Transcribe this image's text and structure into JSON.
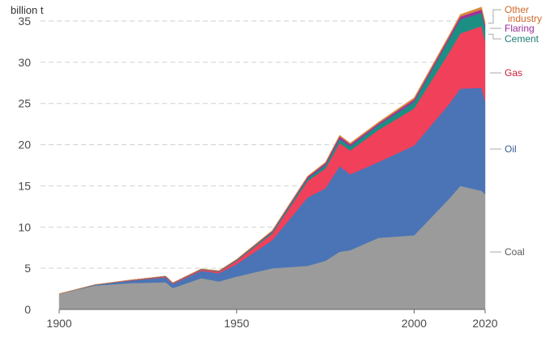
{
  "chart_data": {
    "type": "area",
    "stacked": true,
    "title": "",
    "xlabel": "",
    "ylabel": "billion t",
    "xlim": [
      1900,
      2020
    ],
    "ylim": [
      0,
      35
    ],
    "yticks": [
      0,
      5,
      10,
      15,
      20,
      25,
      30,
      35
    ],
    "xticks": [
      1900,
      1950,
      2000,
      2020
    ],
    "grid": "horizontal dashed",
    "legend_placement": "right, inline labels",
    "x": [
      1900,
      1910,
      1920,
      1930,
      1932,
      1940,
      1945,
      1950,
      1960,
      1970,
      1975,
      1979,
      1982,
      1990,
      2000,
      2010,
      2013,
      2019,
      2020
    ],
    "series": [
      {
        "name": "Coal",
        "color": "#9b9b9b",
        "label_color": "#5a5a5a",
        "values": [
          1.9,
          2.9,
          3.2,
          3.3,
          2.6,
          3.8,
          3.4,
          4.0,
          5.0,
          5.3,
          5.9,
          7.0,
          7.2,
          8.7,
          9.0,
          13.5,
          15.0,
          14.4,
          14.0
        ]
      },
      {
        "name": "Oil",
        "color": "#4a74b6",
        "label_color": "#3a5f95",
        "values": [
          0.0,
          0.1,
          0.3,
          0.6,
          0.5,
          0.9,
          1.0,
          1.5,
          3.4,
          8.3,
          8.8,
          10.4,
          9.2,
          9.2,
          10.9,
          11.5,
          11.8,
          12.5,
          11.3
        ]
      },
      {
        "name": "Gas",
        "color": "#f0405a",
        "label_color": "#d01c3a",
        "values": [
          0.0,
          0.0,
          0.05,
          0.1,
          0.1,
          0.15,
          0.2,
          0.4,
          0.8,
          2.0,
          2.4,
          2.8,
          2.9,
          3.9,
          4.5,
          6.3,
          6.7,
          7.5,
          7.3
        ]
      },
      {
        "name": "Cement",
        "color": "#1b8f83",
        "label_color": "#1d7d74",
        "values": [
          0.0,
          0.0,
          0.02,
          0.05,
          0.04,
          0.06,
          0.06,
          0.1,
          0.2,
          0.3,
          0.4,
          0.5,
          0.5,
          0.6,
          0.8,
          1.6,
          1.7,
          1.6,
          1.6
        ]
      },
      {
        "name": "Flaring",
        "color": "#a1319a",
        "label_color": "#9b2f9b",
        "values": [
          0.0,
          0.0,
          0.0,
          0.0,
          0.0,
          0.0,
          0.02,
          0.05,
          0.1,
          0.2,
          0.25,
          0.3,
          0.25,
          0.2,
          0.3,
          0.3,
          0.35,
          0.4,
          0.4
        ]
      },
      {
        "name": "Other industry",
        "label_lines": [
          "Other",
          "industry"
        ],
        "color": "#d98a3a",
        "label_color": "#d0692a",
        "values": [
          0.0,
          0.0,
          0.0,
          0.0,
          0.0,
          0.02,
          0.03,
          0.05,
          0.08,
          0.1,
          0.12,
          0.15,
          0.15,
          0.15,
          0.2,
          0.2,
          0.25,
          0.3,
          0.3
        ]
      }
    ]
  }
}
